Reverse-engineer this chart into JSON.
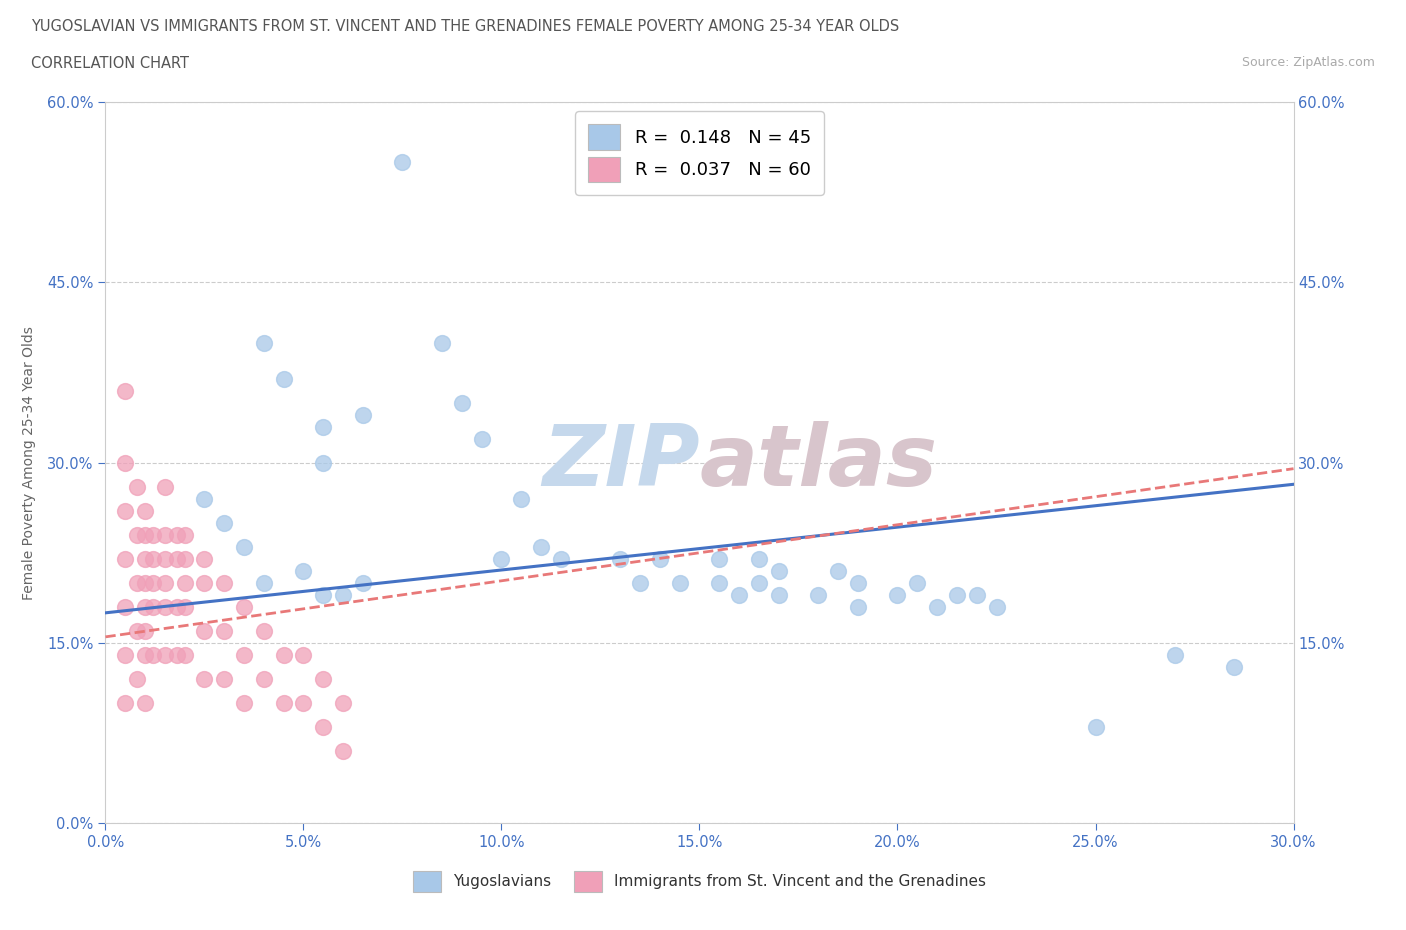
{
  "title": "YUGOSLAVIAN VS IMMIGRANTS FROM ST. VINCENT AND THE GRENADINES FEMALE POVERTY AMONG 25-34 YEAR OLDS",
  "subtitle": "CORRELATION CHART",
  "source": "Source: ZipAtlas.com",
  "ylabel_label": "Female Poverty Among 25-34 Year Olds",
  "legend_bottom_label1": "Yugoslavians",
  "legend_bottom_label2": "Immigrants from St. Vincent and the Grenadines",
  "blue_color": "#a8c8e8",
  "pink_color": "#f0a0b8",
  "blue_line_color": "#4472c4",
  "pink_line_color": "#e87878",
  "tick_color": "#4472c4",
  "title_color": "#555555",
  "grid_color": "#cccccc",
  "watermark_color": "#dce8f0",
  "xlim": [
    0.0,
    0.3
  ],
  "ylim": [
    0.0,
    0.6
  ],
  "xticks": [
    0.0,
    0.05,
    0.1,
    0.15,
    0.2,
    0.25,
    0.3
  ],
  "yticks": [
    0.0,
    0.15,
    0.3,
    0.45,
    0.6
  ],
  "blue_R": 0.148,
  "blue_N": 45,
  "pink_R": 0.037,
  "pink_N": 60,
  "blue_scatter_x": [
    0.075,
    0.04,
    0.045,
    0.055,
    0.055,
    0.065,
    0.085,
    0.09,
    0.095,
    0.1,
    0.105,
    0.11,
    0.115,
    0.13,
    0.135,
    0.14,
    0.145,
    0.155,
    0.155,
    0.16,
    0.165,
    0.165,
    0.17,
    0.17,
    0.18,
    0.185,
    0.19,
    0.19,
    0.2,
    0.205,
    0.21,
    0.215,
    0.22,
    0.225,
    0.025,
    0.03,
    0.035,
    0.04,
    0.05,
    0.055,
    0.06,
    0.065,
    0.27,
    0.285,
    0.25
  ],
  "blue_scatter_y": [
    0.55,
    0.4,
    0.37,
    0.33,
    0.3,
    0.34,
    0.4,
    0.35,
    0.32,
    0.22,
    0.27,
    0.23,
    0.22,
    0.22,
    0.2,
    0.22,
    0.2,
    0.22,
    0.2,
    0.19,
    0.22,
    0.2,
    0.21,
    0.19,
    0.19,
    0.21,
    0.2,
    0.18,
    0.19,
    0.2,
    0.18,
    0.19,
    0.19,
    0.18,
    0.27,
    0.25,
    0.23,
    0.2,
    0.21,
    0.19,
    0.19,
    0.2,
    0.14,
    0.13,
    0.08
  ],
  "pink_scatter_x": [
    0.005,
    0.005,
    0.005,
    0.005,
    0.005,
    0.005,
    0.005,
    0.008,
    0.008,
    0.008,
    0.008,
    0.008,
    0.01,
    0.01,
    0.01,
    0.01,
    0.01,
    0.01,
    0.01,
    0.01,
    0.012,
    0.012,
    0.012,
    0.012,
    0.012,
    0.015,
    0.015,
    0.015,
    0.015,
    0.015,
    0.015,
    0.018,
    0.018,
    0.018,
    0.018,
    0.02,
    0.02,
    0.02,
    0.02,
    0.02,
    0.025,
    0.025,
    0.025,
    0.025,
    0.03,
    0.03,
    0.03,
    0.035,
    0.035,
    0.035,
    0.04,
    0.04,
    0.045,
    0.045,
    0.05,
    0.05,
    0.055,
    0.055,
    0.06,
    0.06
  ],
  "pink_scatter_y": [
    0.36,
    0.3,
    0.26,
    0.22,
    0.18,
    0.14,
    0.1,
    0.28,
    0.24,
    0.2,
    0.16,
    0.12,
    0.26,
    0.24,
    0.22,
    0.2,
    0.18,
    0.16,
    0.14,
    0.1,
    0.24,
    0.22,
    0.2,
    0.18,
    0.14,
    0.28,
    0.24,
    0.22,
    0.2,
    0.18,
    0.14,
    0.24,
    0.22,
    0.18,
    0.14,
    0.24,
    0.22,
    0.2,
    0.18,
    0.14,
    0.22,
    0.2,
    0.16,
    0.12,
    0.2,
    0.16,
    0.12,
    0.18,
    0.14,
    0.1,
    0.16,
    0.12,
    0.14,
    0.1,
    0.14,
    0.1,
    0.12,
    0.08,
    0.1,
    0.06
  ]
}
